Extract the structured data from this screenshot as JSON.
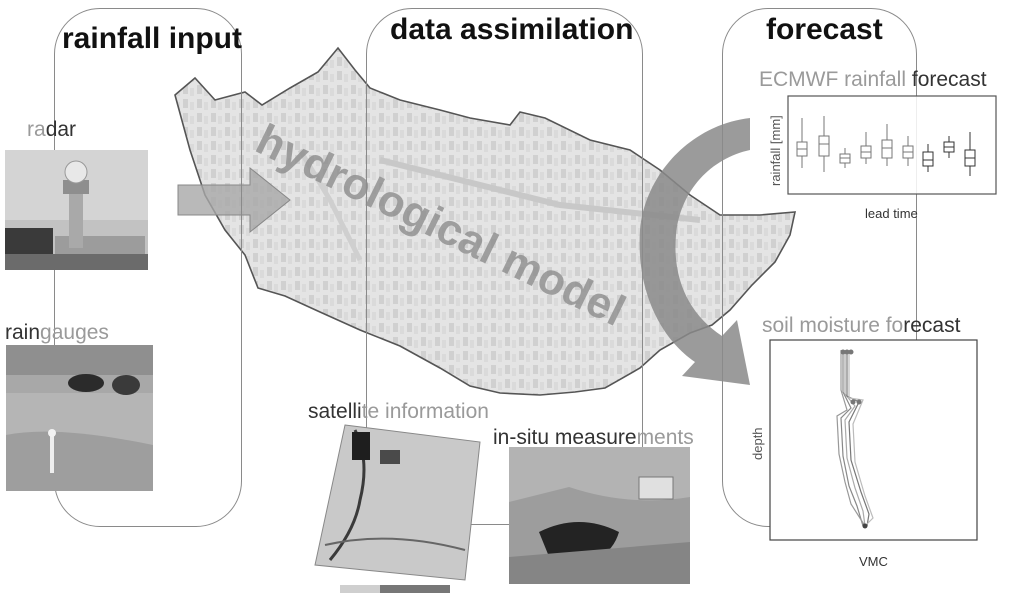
{
  "headings": {
    "rainfall_input": "rainfall input",
    "data_assimilation": "data assimilation",
    "forecast": "forecast"
  },
  "labels": {
    "radar_light": "ra",
    "radar_dark": "dar",
    "raingauges_dark": "rain",
    "raingauges_light": "gauges",
    "satellite_dark": "satelli",
    "satellite_light": "te information",
    "insitu_dark": "in-situ measure",
    "insitu_light": "ments",
    "ecmwf_light": "ECMWF rainfall ",
    "ecmwf_dark": "forecast",
    "soil_light": "soil moisture fo",
    "soil_dark": "recast"
  },
  "model_label": "hydrological model",
  "rainfall_chart": {
    "ylabel": "rainfall [mm]",
    "xlabel": "lead time"
  },
  "soil_chart": {
    "ylabel": "depth",
    "xlabel": "VMC"
  },
  "colors": {
    "panel_border": "#8a8a8a",
    "heading": "#111111",
    "light_text": "#9a9a9a",
    "dark_text": "#333333",
    "map_fill": "#e2e2e2",
    "arrow_fill": "#a8a8a8"
  }
}
